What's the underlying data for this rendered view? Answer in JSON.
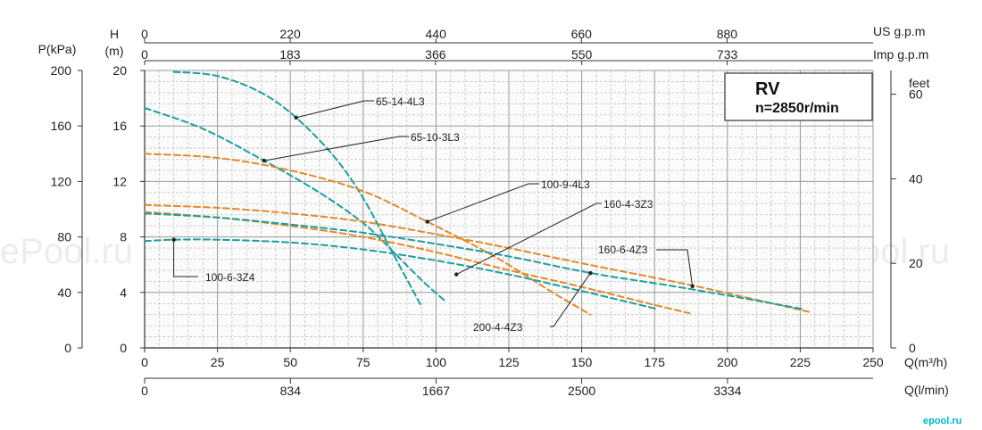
{
  "chart_data": {
    "type": "line",
    "axes": {
      "pressure": {
        "label": "P(kPa)",
        "ticks": [
          "0",
          "40",
          "80",
          "120",
          "160",
          "200"
        ],
        "range": [
          0,
          200
        ]
      },
      "head_m": {
        "label_top": "H",
        "label_unit": "(m)",
        "ticks": [
          "0",
          "4",
          "8",
          "12",
          "16",
          "20"
        ],
        "range": [
          0,
          20
        ]
      },
      "head_ft": {
        "label": "feet",
        "ticks": [
          "0",
          "20",
          "40",
          "60"
        ],
        "range": [
          0,
          65.6
        ]
      },
      "flow_m3h": {
        "label": "Q(m³/h)",
        "ticks": [
          "0",
          "25",
          "50",
          "75",
          "100",
          "125",
          "150",
          "175",
          "200",
          "225",
          "250"
        ],
        "range": [
          0,
          250
        ]
      },
      "flow_lmin": {
        "label": "Q(l/min)",
        "ticks": [
          "0",
          "834",
          "1667",
          "2500",
          "3334"
        ]
      },
      "flow_usgpm": {
        "label": "US g.p.m",
        "ticks": [
          "0",
          "220",
          "440",
          "660",
          "880"
        ]
      },
      "flow_impgpm": {
        "label": "Imp g.p.m",
        "ticks": [
          "0",
          "183",
          "366",
          "550",
          "733"
        ]
      }
    },
    "grid": true,
    "info_box": {
      "title": "RV",
      "speed": "n=2850r/min"
    },
    "colors": {
      "teal": "#1f9e9e",
      "orange": "#e08a2a",
      "grid_major": "#999999",
      "grid_minor": "#c4c4c4"
    },
    "series": [
      {
        "name": "65-14-4L3",
        "color": "teal",
        "x": [
          10,
          25,
          40,
          52,
          65,
          75,
          85,
          95
        ],
        "y": [
          19.9,
          19.6,
          18.4,
          16.6,
          13.8,
          10.8,
          6.9,
          3.0
        ]
      },
      {
        "name": "65-10-3L3",
        "color": "teal",
        "x": [
          0,
          20,
          41,
          60,
          75,
          85,
          95,
          103
        ],
        "y": [
          17.3,
          15.8,
          13.5,
          11.2,
          9.0,
          7.0,
          4.9,
          3.4
        ]
      },
      {
        "name": "100-9-4L3",
        "color": "orange",
        "x": [
          0,
          25,
          50,
          75,
          97,
          120,
          140,
          153
        ],
        "y": [
          14.0,
          13.7,
          12.8,
          11.3,
          9.1,
          6.6,
          4.0,
          2.4
        ]
      },
      {
        "name": "160-4-3Z3",
        "color": "orange",
        "x": [
          0,
          25,
          50,
          75,
          100,
          125,
          150,
          175,
          187
        ],
        "y": [
          9.8,
          9.4,
          8.8,
          8.0,
          6.9,
          5.6,
          4.4,
          3.1,
          2.5
        ]
      },
      {
        "name": "160-6-4Z3",
        "color": "orange",
        "x": [
          0,
          25,
          50,
          75,
          100,
          125,
          150,
          188,
          228
        ],
        "y": [
          10.3,
          10.1,
          9.7,
          9.1,
          8.2,
          7.2,
          6.1,
          4.5,
          2.6
        ]
      },
      {
        "name": "200-4-4Z3",
        "color": "teal",
        "x": [
          0,
          25,
          50,
          75,
          100,
          125,
          153,
          180,
          205,
          226
        ],
        "y": [
          9.7,
          9.4,
          8.9,
          8.3,
          7.5,
          6.6,
          5.4,
          4.5,
          3.6,
          2.8
        ]
      },
      {
        "name": "100-6-3Z4",
        "color": "teal",
        "x": [
          0,
          10,
          25,
          50,
          75,
          100,
          125,
          150,
          176
        ],
        "y": [
          7.7,
          7.8,
          7.8,
          7.6,
          7.1,
          6.3,
          5.3,
          4.1,
          2.8
        ]
      }
    ],
    "callouts": [
      {
        "series": "65-14-4L3",
        "text": "65-14-4L3"
      },
      {
        "series": "65-10-3L3",
        "text": "65-10-3L3"
      },
      {
        "series": "100-9-4L3",
        "text": "100-9-4L3"
      },
      {
        "series": "160-4-3Z3",
        "text": "160-4-3Z3"
      },
      {
        "series": "160-6-4Z3",
        "text": "160-6-4Z3"
      },
      {
        "series": "200-4-4Z3",
        "text": "200-4-4Z3"
      },
      {
        "series": "100-6-3Z4",
        "text": "100-6-3Z4"
      }
    ],
    "watermark": "ePool.ru",
    "logo": "epool.ru"
  }
}
